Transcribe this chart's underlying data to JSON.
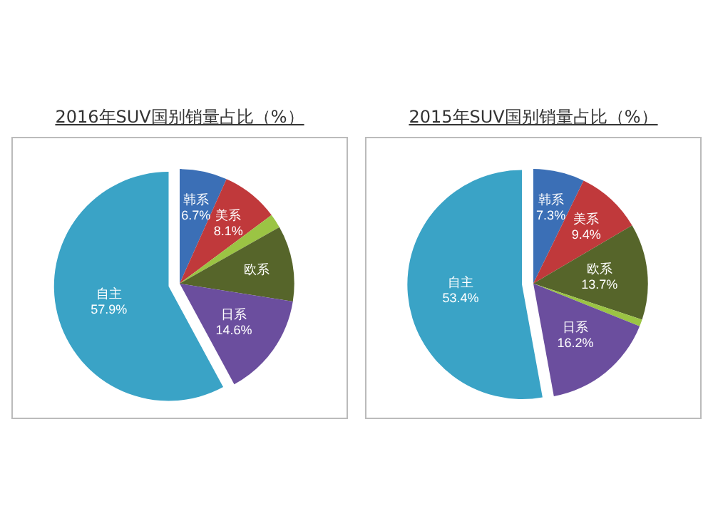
{
  "chart_data": [
    {
      "type": "pie",
      "title": "2016年SUV国别销量占比（%）",
      "categories": [
        "韩系",
        "美系",
        null,
        "欧系",
        "日系",
        "自主"
      ],
      "values": [
        6.7,
        8.1,
        2.0,
        10.7,
        14.6,
        57.9
      ],
      "value_labels": [
        "6.7%",
        "8.1%",
        null,
        null,
        "14.6%",
        "57.9%"
      ],
      "colors": [
        "#3b6fb6",
        "#c0393b",
        "#9bc444",
        "#56652a",
        "#6b4e9e",
        "#3aa3c6"
      ],
      "legend": false
    },
    {
      "type": "pie",
      "title": "2015年SUV国别销量占比（%）",
      "categories": [
        "韩系",
        "美系",
        "欧系",
        null,
        "日系",
        "自主"
      ],
      "values": [
        7.3,
        9.4,
        13.7,
        1.0,
        16.2,
        53.4
      ],
      "value_labels": [
        "7.3%",
        "9.4%",
        "13.7%",
        null,
        "16.2%",
        "53.4%"
      ],
      "colors": [
        "#3b6fb6",
        "#c0393b",
        "#56652a",
        "#9bc444",
        "#6b4e9e",
        "#3aa3c6"
      ],
      "legend": false
    }
  ]
}
